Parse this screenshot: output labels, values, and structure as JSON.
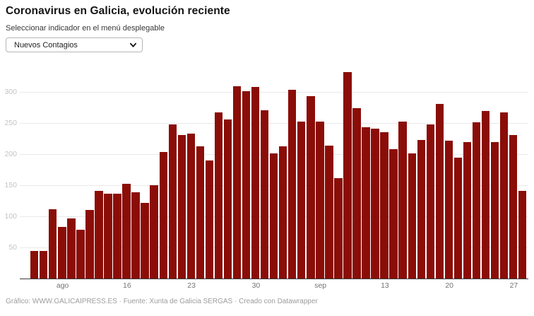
{
  "header": {
    "title": "Coronavirus en Galicia, evolución reciente",
    "subtitle": "Seleccionar indicador en el menú desplegable"
  },
  "controls": {
    "indicator_select": {
      "selected": "Nuevos Contagios",
      "chevron_icon": "chevron-down"
    }
  },
  "chart_data": {
    "type": "bar",
    "title": "Coronavirus en Galicia, evolución reciente",
    "xlabel": "",
    "ylabel": "",
    "ylim": [
      0,
      334
    ],
    "grid": true,
    "bar_color": "#8b0d08",
    "y_ticks": [
      50,
      100,
      150,
      200,
      250,
      300
    ],
    "x_tick_labels": [
      {
        "index": 3,
        "label": "ago"
      },
      {
        "index": 10,
        "label": "16"
      },
      {
        "index": 17,
        "label": "23"
      },
      {
        "index": 24,
        "label": "30"
      },
      {
        "index": 31,
        "label": "sep"
      },
      {
        "index": 38,
        "label": "13"
      },
      {
        "index": 45,
        "label": "20"
      },
      {
        "index": 52,
        "label": "27"
      }
    ],
    "values": [
      44,
      44,
      112,
      83,
      97,
      79,
      110,
      141,
      136,
      137,
      152,
      139,
      122,
      150,
      204,
      248,
      231,
      233,
      213,
      190,
      267,
      256,
      309,
      301,
      308,
      271,
      201,
      213,
      304,
      252,
      293,
      253,
      214,
      161,
      332,
      274,
      243,
      241,
      236,
      208,
      253,
      201,
      223,
      248,
      281,
      222,
      195,
      220,
      251,
      270,
      220,
      267,
      231,
      141
    ]
  },
  "footer": {
    "credit": "Gráfico: WWW.GALICAIPRESS.ES · Fuente: Xunta de Galicia SERGAS · Creado con Datawrapper"
  }
}
